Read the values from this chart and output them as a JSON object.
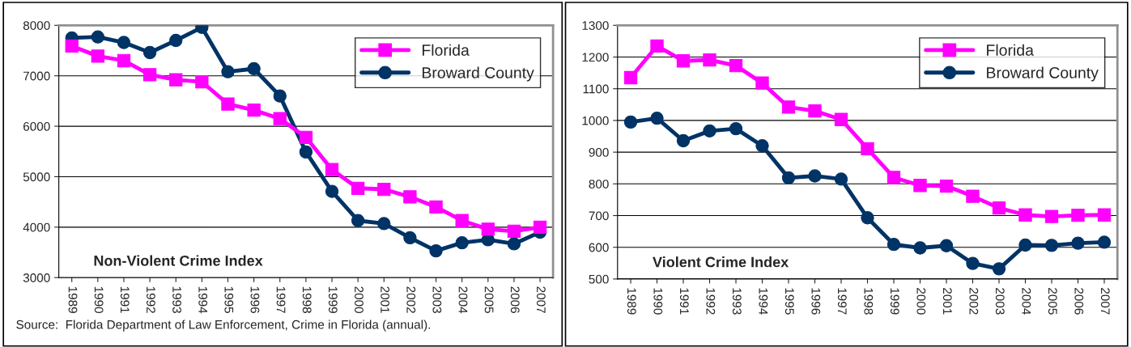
{
  "chart_data": [
    {
      "type": "line",
      "title": "Non-Violent Crime Index",
      "categories": [
        "1989",
        "1990",
        "1991",
        "1992",
        "1993",
        "1994",
        "1995",
        "1996",
        "1997",
        "1998",
        "1999",
        "2000",
        "2001",
        "2002",
        "2003",
        "2004",
        "2005",
        "2006",
        "2007"
      ],
      "series": [
        {
          "name": "Florida",
          "color": "#ff00ff",
          "marker": "square",
          "values": [
            7590,
            7390,
            7300,
            7020,
            6920,
            6880,
            6440,
            6320,
            6150,
            5780,
            5140,
            4770,
            4750,
            4600,
            4400,
            4130,
            3960,
            3920,
            4000
          ]
        },
        {
          "name": "Broward County",
          "color": "#003366",
          "marker": "circle",
          "values": [
            7750,
            7770,
            7660,
            7460,
            7700,
            7960,
            7080,
            7140,
            6600,
            5490,
            4710,
            4130,
            4070,
            3790,
            3530,
            3690,
            3750,
            3670,
            3900
          ]
        }
      ],
      "ylim": [
        3000,
        8000
      ],
      "yticks": [
        3000,
        4000,
        5000,
        6000,
        7000,
        8000
      ],
      "grid": "y",
      "legend": "top right",
      "annotations": [
        "Source:  Florida Department of Law Enforcement, Crime in Florida (annual)."
      ]
    },
    {
      "type": "line",
      "title": "Violent Crime Index",
      "categories": [
        "1989",
        "1990",
        "1991",
        "1992",
        "1993",
        "1994",
        "1995",
        "1996",
        "1997",
        "1998",
        "1999",
        "2000",
        "2001",
        "2002",
        "2003",
        "2004",
        "2005",
        "2006",
        "2007"
      ],
      "series": [
        {
          "name": "Florida",
          "color": "#ff00ff",
          "marker": "square",
          "values": [
            1135,
            1235,
            1188,
            1191,
            1173,
            1118,
            1042,
            1030,
            1003,
            911,
            820,
            795,
            793,
            761,
            724,
            702,
            697,
            701,
            702
          ]
        },
        {
          "name": "Broward County",
          "color": "#003366",
          "marker": "circle",
          "values": [
            995,
            1007,
            936,
            967,
            974,
            920,
            819,
            825,
            815,
            693,
            609,
            598,
            605,
            549,
            532,
            607,
            606,
            613,
            616
          ]
        }
      ],
      "ylim": [
        500,
        1300
      ],
      "yticks": [
        500,
        600,
        700,
        800,
        900,
        1000,
        1100,
        1200,
        1300
      ],
      "grid": "y",
      "legend": "top right"
    }
  ]
}
